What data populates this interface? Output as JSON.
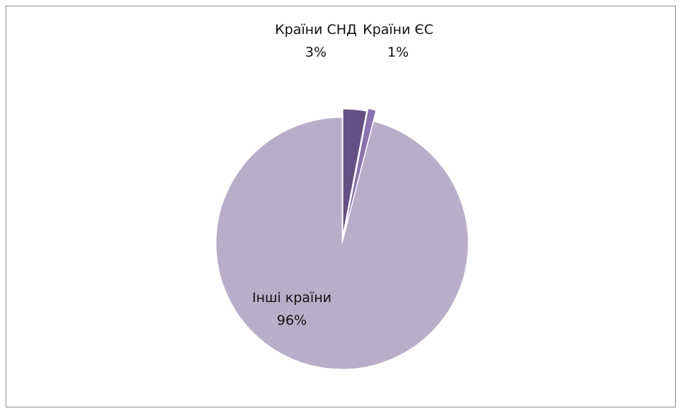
{
  "chart_data": {
    "type": "pie",
    "title": "",
    "slices": [
      {
        "label": "Країни СНД",
        "value": 3,
        "percent_label": "3%",
        "color": "#654f84"
      },
      {
        "label": "Країни ЄС",
        "value": 1,
        "percent_label": "1%",
        "color": "#8a72b0"
      },
      {
        "label": "Інші країни",
        "value": 96,
        "percent_label": "96%",
        "color": "#b8aec9"
      }
    ],
    "legend": "none",
    "exploded": true
  }
}
